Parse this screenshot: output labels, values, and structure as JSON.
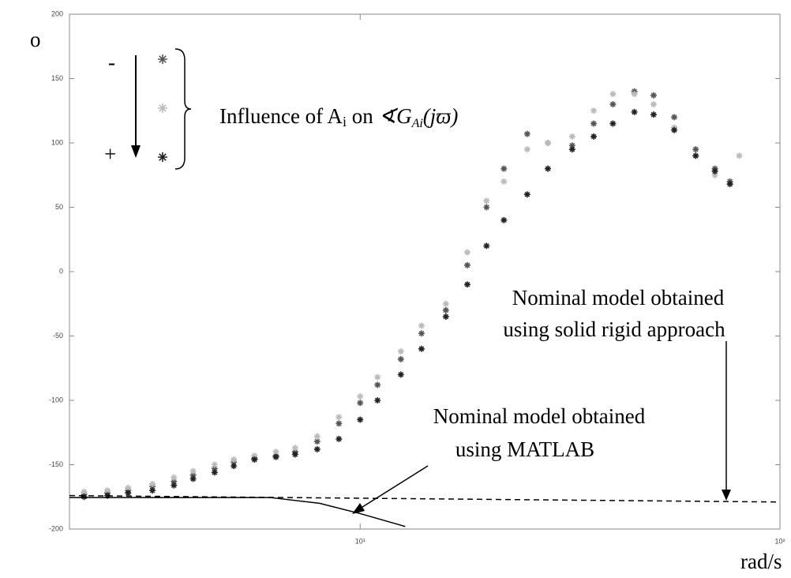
{
  "chart_data": {
    "type": "scatter",
    "xscale": "log",
    "xlim": [
      2.03,
      100
    ],
    "ylim": [
      -200,
      200
    ],
    "xticks": [
      {
        "value": 10,
        "label": "10¹"
      },
      {
        "value": 100,
        "label": "10²"
      }
    ],
    "yticks": [
      200,
      150,
      100,
      50,
      0,
      -50,
      -100,
      -150,
      -200
    ],
    "y_label": "o",
    "x_label": "rad/s",
    "legend_signs": [
      "-",
      "+"
    ],
    "influence": [
      "Influence of A",
      "i",
      " on ",
      "∢G",
      "Ai",
      "(jϖ)"
    ],
    "annotations": [
      [
        "Nominal model obtained",
        "using solid rigid approach"
      ],
      [
        "Nominal model obtained",
        "using  MATLAB"
      ]
    ],
    "series": [
      {
        "color": "#555555",
        "x": [
          2.2,
          2.5,
          2.8,
          3.2,
          3.6,
          4,
          4.5,
          5,
          5.6,
          6.3,
          7,
          7.9,
          8.9,
          10,
          11,
          12.5,
          14,
          16,
          18,
          20,
          22,
          25,
          28,
          32,
          36,
          40,
          45,
          50,
          56,
          63,
          70,
          76
        ],
        "values": [
          -173,
          -172,
          -170,
          -167,
          -163,
          -158,
          -153,
          -148,
          -145,
          -143,
          -140,
          -132,
          -118,
          -102,
          -88,
          -68,
          -48,
          -30,
          5,
          50,
          80,
          107,
          100,
          98,
          115,
          130,
          140,
          137,
          120,
          95,
          80,
          70
        ]
      },
      {
        "color": "#bbbbbb",
        "x": [
          2.2,
          2.5,
          2.8,
          3.2,
          3.6,
          4,
          4.5,
          5,
          5.6,
          6.3,
          7,
          7.9,
          8.9,
          10,
          11,
          12.5,
          14,
          16,
          18,
          20,
          22,
          25,
          28,
          32,
          36,
          40,
          45,
          50,
          56,
          63,
          70,
          80
        ],
        "values": [
          -171,
          -170,
          -168,
          -165,
          -160,
          -155,
          -150,
          -146,
          -143,
          -140,
          -137,
          -128,
          -113,
          -97,
          -82,
          -62,
          -42,
          -25,
          15,
          55,
          70,
          95,
          100,
          105,
          125,
          138,
          138,
          130,
          112,
          90,
          75,
          90
        ]
      },
      {
        "color": "#222222",
        "x": [
          2.2,
          2.5,
          2.8,
          3.2,
          3.6,
          4,
          4.5,
          5,
          5.6,
          6.3,
          7,
          7.9,
          8.9,
          10,
          11,
          12.5,
          14,
          16,
          18,
          20,
          22,
          25,
          28,
          32,
          36,
          40,
          45,
          50,
          56,
          63,
          70,
          76
        ],
        "values": [
          -175,
          -174,
          -172,
          -170,
          -166,
          -161,
          -156,
          -151,
          -146,
          -144,
          -142,
          -138,
          -130,
          -115,
          -100,
          -80,
          -60,
          -35,
          -10,
          20,
          40,
          60,
          80,
          95,
          105,
          115,
          124,
          122,
          110,
          90,
          78,
          68
        ]
      }
    ],
    "lines": [
      {
        "style": "solid",
        "color": "#000000",
        "x": [
          2.03,
          4,
          6.1,
          8,
          10,
          12.8
        ],
        "values": [
          -175.5,
          -175.5,
          -175.5,
          -180,
          -188,
          -198
        ]
      },
      {
        "style": "dashed",
        "color": "#000000",
        "x": [
          2.03,
          100
        ],
        "values": [
          -174,
          -179
        ]
      }
    ]
  }
}
